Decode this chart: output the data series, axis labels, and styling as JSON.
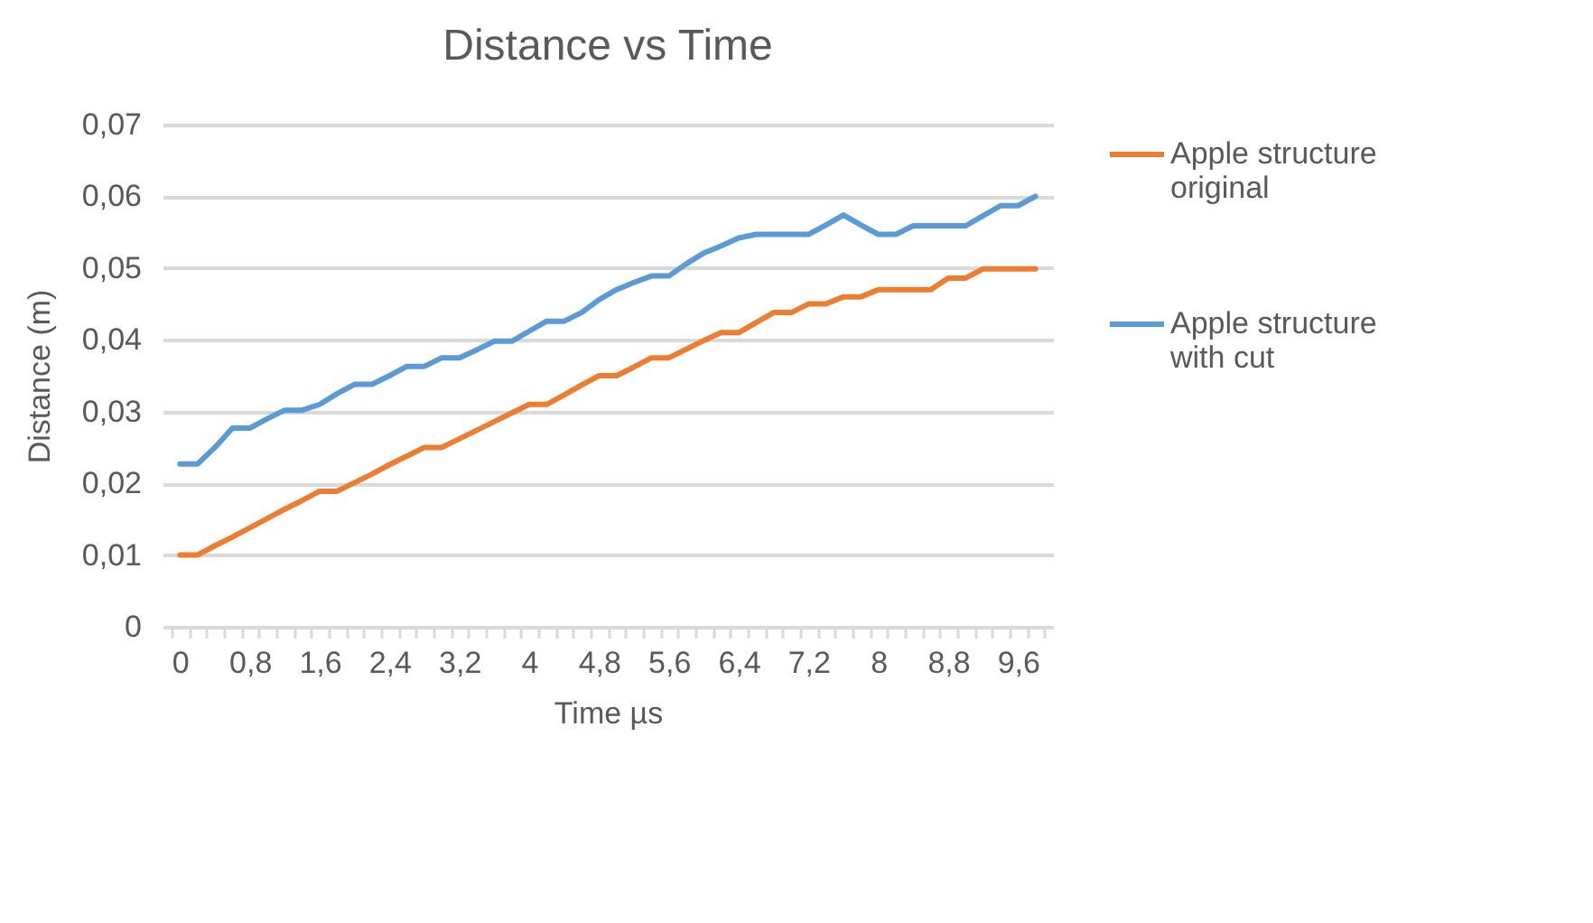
{
  "chart_data": {
    "type": "line",
    "title": "Distance vs Time",
    "xlabel": "Time  µs",
    "ylabel": "Distance (m)",
    "categories": [
      "0",
      null,
      null,
      null,
      "0,8",
      null,
      null,
      null,
      "1,6",
      null,
      null,
      null,
      "2,4",
      null,
      null,
      null,
      "3,2",
      null,
      null,
      null,
      "4",
      null,
      null,
      null,
      "4,8",
      null,
      null,
      null,
      "5,6",
      null,
      null,
      null,
      "6,4",
      null,
      null,
      null,
      "7,2",
      null,
      null,
      null,
      "8",
      null,
      null,
      null,
      "8,8",
      null,
      null,
      null,
      "9,6",
      null
    ],
    "series": [
      {
        "name": "Apple structure original",
        "color": "#ed7d31",
        "values": [
          0.01,
          0.01,
          0.0113,
          0.0125,
          0.0138,
          0.0151,
          0.0164,
          0.0176,
          0.0189,
          0.0189,
          0.0201,
          0.0213,
          0.0226,
          0.0238,
          0.025,
          0.025,
          0.0262,
          0.0274,
          0.0286,
          0.0298,
          0.031,
          0.031,
          0.0323,
          0.0337,
          0.035,
          0.035,
          0.0362,
          0.0375,
          0.0375,
          0.0387,
          0.0399,
          0.041,
          0.041,
          0.0424,
          0.0438,
          0.0438,
          0.045,
          0.045,
          0.046,
          0.046,
          0.047,
          0.047,
          0.047,
          0.047,
          0.0486,
          0.0486,
          0.0499,
          0.0499,
          0.0499,
          0.0499
        ]
      },
      {
        "name": "Apple structure with cut",
        "color": "#5b9bd5",
        "values": [
          0.0227,
          0.0227,
          0.025,
          0.0277,
          0.0277,
          0.029,
          0.0302,
          0.0302,
          0.031,
          0.0325,
          0.0338,
          0.0338,
          0.035,
          0.0363,
          0.0363,
          0.0375,
          0.0375,
          0.0386,
          0.0398,
          0.0398,
          0.0412,
          0.0426,
          0.0426,
          0.0438,
          0.0456,
          0.047,
          0.048,
          0.0489,
          0.0489,
          0.0506,
          0.0521,
          0.0531,
          0.0542,
          0.0547,
          0.0547,
          0.0547,
          0.0547,
          0.056,
          0.0574,
          0.056,
          0.0547,
          0.0547,
          0.0559,
          0.0559,
          0.0559,
          0.0559,
          0.0573,
          0.0587,
          0.0587,
          0.06
        ]
      }
    ],
    "ylim": [
      0,
      0.07
    ],
    "yticks": [
      0,
      {
        "value": 0.01,
        "label": "0,01"
      },
      {
        "value": 0.02,
        "label": "0,02"
      },
      {
        "value": 0.03,
        "label": "0,03"
      },
      {
        "value": 0.04,
        "label": "0,04"
      },
      {
        "value": 0.05,
        "label": "0,05"
      },
      {
        "value": 0.06,
        "label": "0,06"
      },
      {
        "value": 0.07,
        "label": "0,07"
      }
    ],
    "grid": "y",
    "legend": "right",
    "marker": "none",
    "line_style": "solid"
  }
}
